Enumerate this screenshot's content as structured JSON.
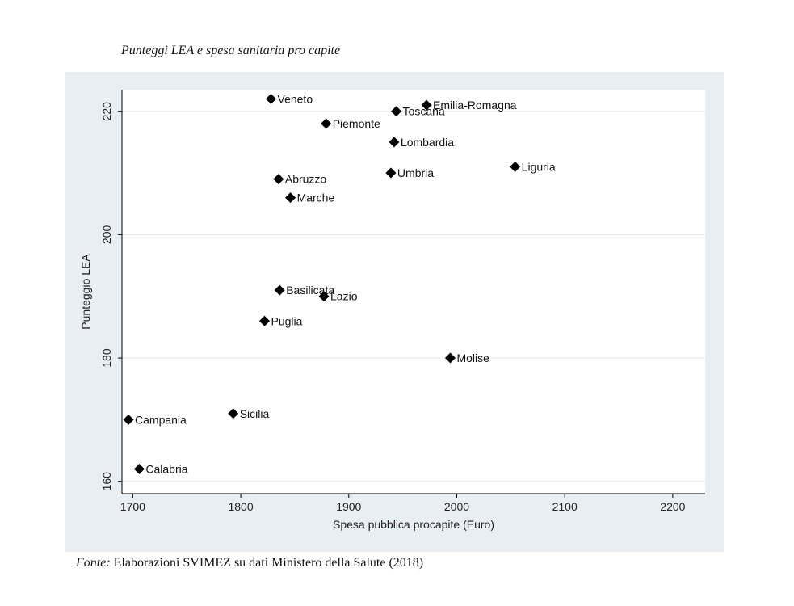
{
  "figure": {
    "title": "Punteggi LEA e spesa sanitaria pro capite",
    "source_label": "Fonte:",
    "source_text": "Elaborazioni SVIMEZ su dati Ministero della Salute (2018)"
  },
  "chart_data": {
    "type": "scatter",
    "title": "",
    "xlabel": "Spesa pubblica procapite (Euro)",
    "ylabel": "Punteggio LEA",
    "xlim": [
      1690,
      2230
    ],
    "ylim": [
      158,
      223.5
    ],
    "xticks": [
      1700,
      1800,
      1900,
      2000,
      2100,
      2200
    ],
    "yticks": [
      160,
      180,
      200,
      220
    ],
    "grid": "horizontal",
    "marker": "diamond",
    "colors": {
      "background": "#e9eef2",
      "plot": "#ffffff",
      "marker": "#000000",
      "grid": "#e6e6e6"
    },
    "points": [
      {
        "label": "Veneto",
        "x": 1828,
        "y": 222
      },
      {
        "label": "Emilia-Romagna",
        "x": 1972,
        "y": 221
      },
      {
        "label": "Toscana",
        "x": 1944,
        "y": 220
      },
      {
        "label": "Piemonte",
        "x": 1879,
        "y": 218
      },
      {
        "label": "Lombardia",
        "x": 1942,
        "y": 215
      },
      {
        "label": "Liguria",
        "x": 2054,
        "y": 211
      },
      {
        "label": "Umbria",
        "x": 1939,
        "y": 210
      },
      {
        "label": "Abruzzo",
        "x": 1835,
        "y": 209
      },
      {
        "label": "Marche",
        "x": 1846,
        "y": 206
      },
      {
        "label": "Basilicata",
        "x": 1836,
        "y": 191
      },
      {
        "label": "Lazio",
        "x": 1877,
        "y": 190
      },
      {
        "label": "Puglia",
        "x": 1822,
        "y": 186
      },
      {
        "label": "Molise",
        "x": 1994,
        "y": 180
      },
      {
        "label": "Sicilia",
        "x": 1793,
        "y": 171
      },
      {
        "label": "Campania",
        "x": 1696,
        "y": 170
      },
      {
        "label": "Calabria",
        "x": 1706,
        "y": 162
      }
    ]
  }
}
